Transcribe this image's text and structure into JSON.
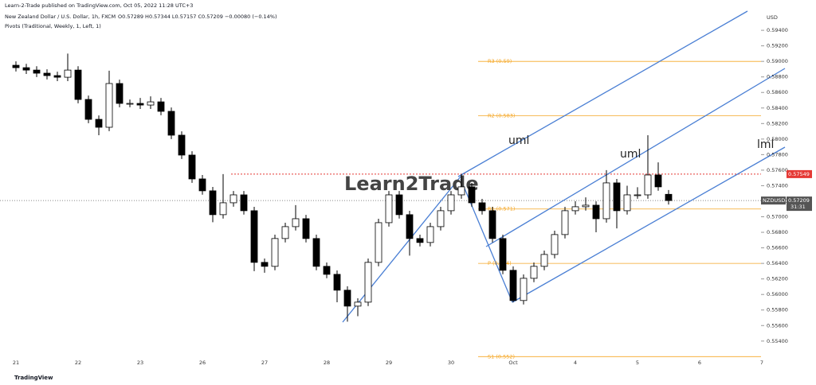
{
  "chart_data": {
    "type": "candlestick",
    "title": "Learn-2-Trade published on TradingView.com, Oct 05, 2022 11:28 UTC+3",
    "symbol_line": "New Zealand Dollar / U.S. Dollar, 1h, FXCM",
    "ohlc_line": "O0.57289 H0.57344 L0.57157 C0.57209 −0.00080 (−0.14%)",
    "indicator_line": "Pivots (Traditional, Weekly, 1, Left, 1)",
    "currency": "USD",
    "watermark": "Learn2Trade",
    "footer": "TradingView",
    "annotations": [
      "uml",
      "uml",
      "lml"
    ],
    "categories": [
      "21",
      null,
      null,
      null,
      null,
      null,
      "22",
      null,
      null,
      null,
      null,
      null,
      "23",
      null,
      null,
      null,
      null,
      null,
      "26",
      null,
      null,
      null,
      null,
      null,
      "27",
      null,
      null,
      null,
      null,
      null,
      "28",
      null,
      null,
      null,
      null,
      null,
      "29",
      null,
      null,
      null,
      null,
      null,
      "30",
      null,
      null,
      null,
      null,
      null,
      "Oct",
      null,
      null,
      null,
      null,
      null,
      "4",
      null,
      null,
      null,
      null,
      null,
      "5",
      null,
      null,
      null,
      null,
      null,
      "6",
      null,
      null,
      null,
      null,
      null,
      "7"
    ],
    "open": [
      0.5895,
      0.58919,
      0.58888,
      0.58848,
      0.58817,
      0.58796,
      0.58888,
      0.5851,
      0.58254,
      0.58152,
      0.58715,
      0.58459,
      0.58459,
      0.58438,
      0.58479,
      0.58357,
      0.5805,
      0.57794,
      0.57487,
      0.57334,
      0.57027,
      0.5718,
      0.57282,
      0.57078,
      0.56413,
      0.56362,
      0.5672,
      0.56873,
      0.56975,
      0.5672,
      0.56362,
      0.56259,
      0.56055,
      0.5585,
      0.55901,
      0.56413,
      0.56924,
      0.57282,
      0.57027,
      0.5672,
      0.56669,
      0.56873,
      0.57078,
      0.57282,
      0.57385,
      0.5718,
      0.57078,
      0.5672,
      0.56311,
      0.55922,
      0.56208,
      0.56362,
      0.56515,
      0.56771,
      0.57078,
      0.57129,
      0.57149,
      0.56975,
      0.57436,
      0.57078,
      0.57282,
      0.57282,
      0.57538,
      0.57289,
      null,
      null,
      null,
      null,
      null,
      null,
      null,
      null,
      null
    ],
    "high": [
      0.59,
      0.58969,
      0.58938,
      0.58898,
      0.58867,
      0.591,
      0.58938,
      0.5856,
      0.58304,
      0.5888,
      0.58765,
      0.58509,
      0.5853,
      0.5855,
      0.58529,
      0.58407,
      0.581,
      0.57844,
      0.57537,
      0.57384,
      0.57549,
      0.57332,
      0.57332,
      0.57128,
      0.56463,
      0.5677,
      0.56923,
      0.5715,
      0.57025,
      0.5677,
      0.56412,
      0.56309,
      0.56105,
      0.55951,
      0.56463,
      0.56974,
      0.57332,
      0.57332,
      0.57077,
      0.5677,
      0.56923,
      0.57128,
      0.57332,
      0.57549,
      0.57435,
      0.5723,
      0.57128,
      0.5677,
      0.56361,
      0.56258,
      0.56412,
      0.56565,
      0.56821,
      0.57128,
      0.572,
      0.5725,
      0.57199,
      0.576,
      0.57486,
      0.574,
      0.5738,
      0.5805,
      0.577,
      0.57344,
      null,
      null,
      null,
      null,
      null,
      null,
      null,
      null,
      null
    ],
    "low": [
      0.5887,
      0.58838,
      0.58798,
      0.58767,
      0.58746,
      0.58746,
      0.5846,
      0.58204,
      0.5805,
      0.58102,
      0.58409,
      0.58409,
      0.58388,
      0.58388,
      0.58307,
      0.58,
      0.57744,
      0.57437,
      0.57284,
      0.5693,
      0.56977,
      0.5713,
      0.57028,
      0.563,
      0.5628,
      0.56312,
      0.5667,
      0.56823,
      0.5667,
      0.56312,
      0.56209,
      0.559,
      0.5565,
      0.5572,
      0.55851,
      0.56363,
      0.56874,
      0.56977,
      0.565,
      0.56619,
      0.56619,
      0.56823,
      0.57028,
      0.57232,
      0.5713,
      0.57028,
      0.5667,
      0.56261,
      0.559,
      0.55872,
      0.56158,
      0.56312,
      0.56465,
      0.56721,
      0.57028,
      0.57079,
      0.568,
      0.56925,
      0.5685,
      0.57028,
      0.57232,
      0.57232,
      0.57335,
      0.57157,
      null,
      null,
      null,
      null,
      null,
      null,
      null,
      null,
      null
    ],
    "close": [
      0.58919,
      0.58888,
      0.58848,
      0.58817,
      0.58796,
      0.58888,
      0.5851,
      0.58254,
      0.58152,
      0.58715,
      0.58459,
      0.58459,
      0.58438,
      0.58479,
      0.58357,
      0.5805,
      0.57794,
      0.57487,
      0.57334,
      0.57027,
      0.5718,
      0.57282,
      0.57078,
      0.56413,
      0.56362,
      0.5672,
      0.56873,
      0.56975,
      0.5672,
      0.56362,
      0.56259,
      0.56055,
      0.5585,
      0.55901,
      0.56413,
      0.56924,
      0.57282,
      0.57027,
      0.5672,
      0.56669,
      0.56873,
      0.57078,
      0.57282,
      0.57385,
      0.5718,
      0.57078,
      0.5672,
      0.56311,
      0.55922,
      0.56208,
      0.56362,
      0.56515,
      0.56771,
      0.57078,
      0.57129,
      0.57149,
      0.56975,
      0.57436,
      0.57078,
      0.57282,
      0.57282,
      0.57538,
      0.57385,
      0.57209,
      null,
      null,
      null,
      null,
      null,
      null,
      null,
      null,
      null
    ],
    "up_color": "#ffffff",
    "down_color": "#000000",
    "ylim": [
      0.5506,
      0.5979
    ],
    "yticks": [
      {
        "value": 0.594,
        "label": "0.59400"
      },
      {
        "value": 0.592,
        "label": "0.59200"
      },
      {
        "value": 0.59,
        "label": "0.59000"
      },
      {
        "value": 0.588,
        "label": "0.58800"
      },
      {
        "value": 0.586,
        "label": "0.58600"
      },
      {
        "value": 0.584,
        "label": "0.58400"
      },
      {
        "value": 0.582,
        "label": "0.58200"
      },
      {
        "value": 0.58,
        "label": "0.58000"
      },
      {
        "value": 0.578,
        "label": "0.57800"
      },
      {
        "value": 0.576,
        "label": "0.57600"
      },
      {
        "value": 0.574,
        "label": "0.57400"
      },
      {
        "value": 0.572,
        "label": "0.57200"
      },
      {
        "value": 0.57,
        "label": "0.57000"
      },
      {
        "value": 0.568,
        "label": "0.56800"
      },
      {
        "value": 0.566,
        "label": "0.56600"
      },
      {
        "value": 0.564,
        "label": "0.56400"
      },
      {
        "value": 0.562,
        "label": "0.56200"
      },
      {
        "value": 0.56,
        "label": "0.56000"
      },
      {
        "value": 0.558,
        "label": "0.55800"
      },
      {
        "value": 0.556,
        "label": "0.55600"
      },
      {
        "value": 0.554,
        "label": "0.55400"
      }
    ],
    "pivots": [
      {
        "label": "R3 (0.59)",
        "value": 0.59
      },
      {
        "label": "R2 (0.583)",
        "value": 0.583
      },
      {
        "label": "R1 (0.571)",
        "value": 0.571
      },
      {
        "label": "P (0.564)",
        "value": 0.564
      },
      {
        "label": "S1 (0.552)",
        "value": 0.552
      }
    ],
    "pivot_color": "#f5a623",
    "level_line": {
      "label": "0.57549",
      "value": 0.57549,
      "color": "#e53935"
    },
    "last_price": {
      "symbol": "NZDUSD",
      "label": "0.57209",
      "value": 0.57209,
      "countdown": "31:31"
    }
  }
}
